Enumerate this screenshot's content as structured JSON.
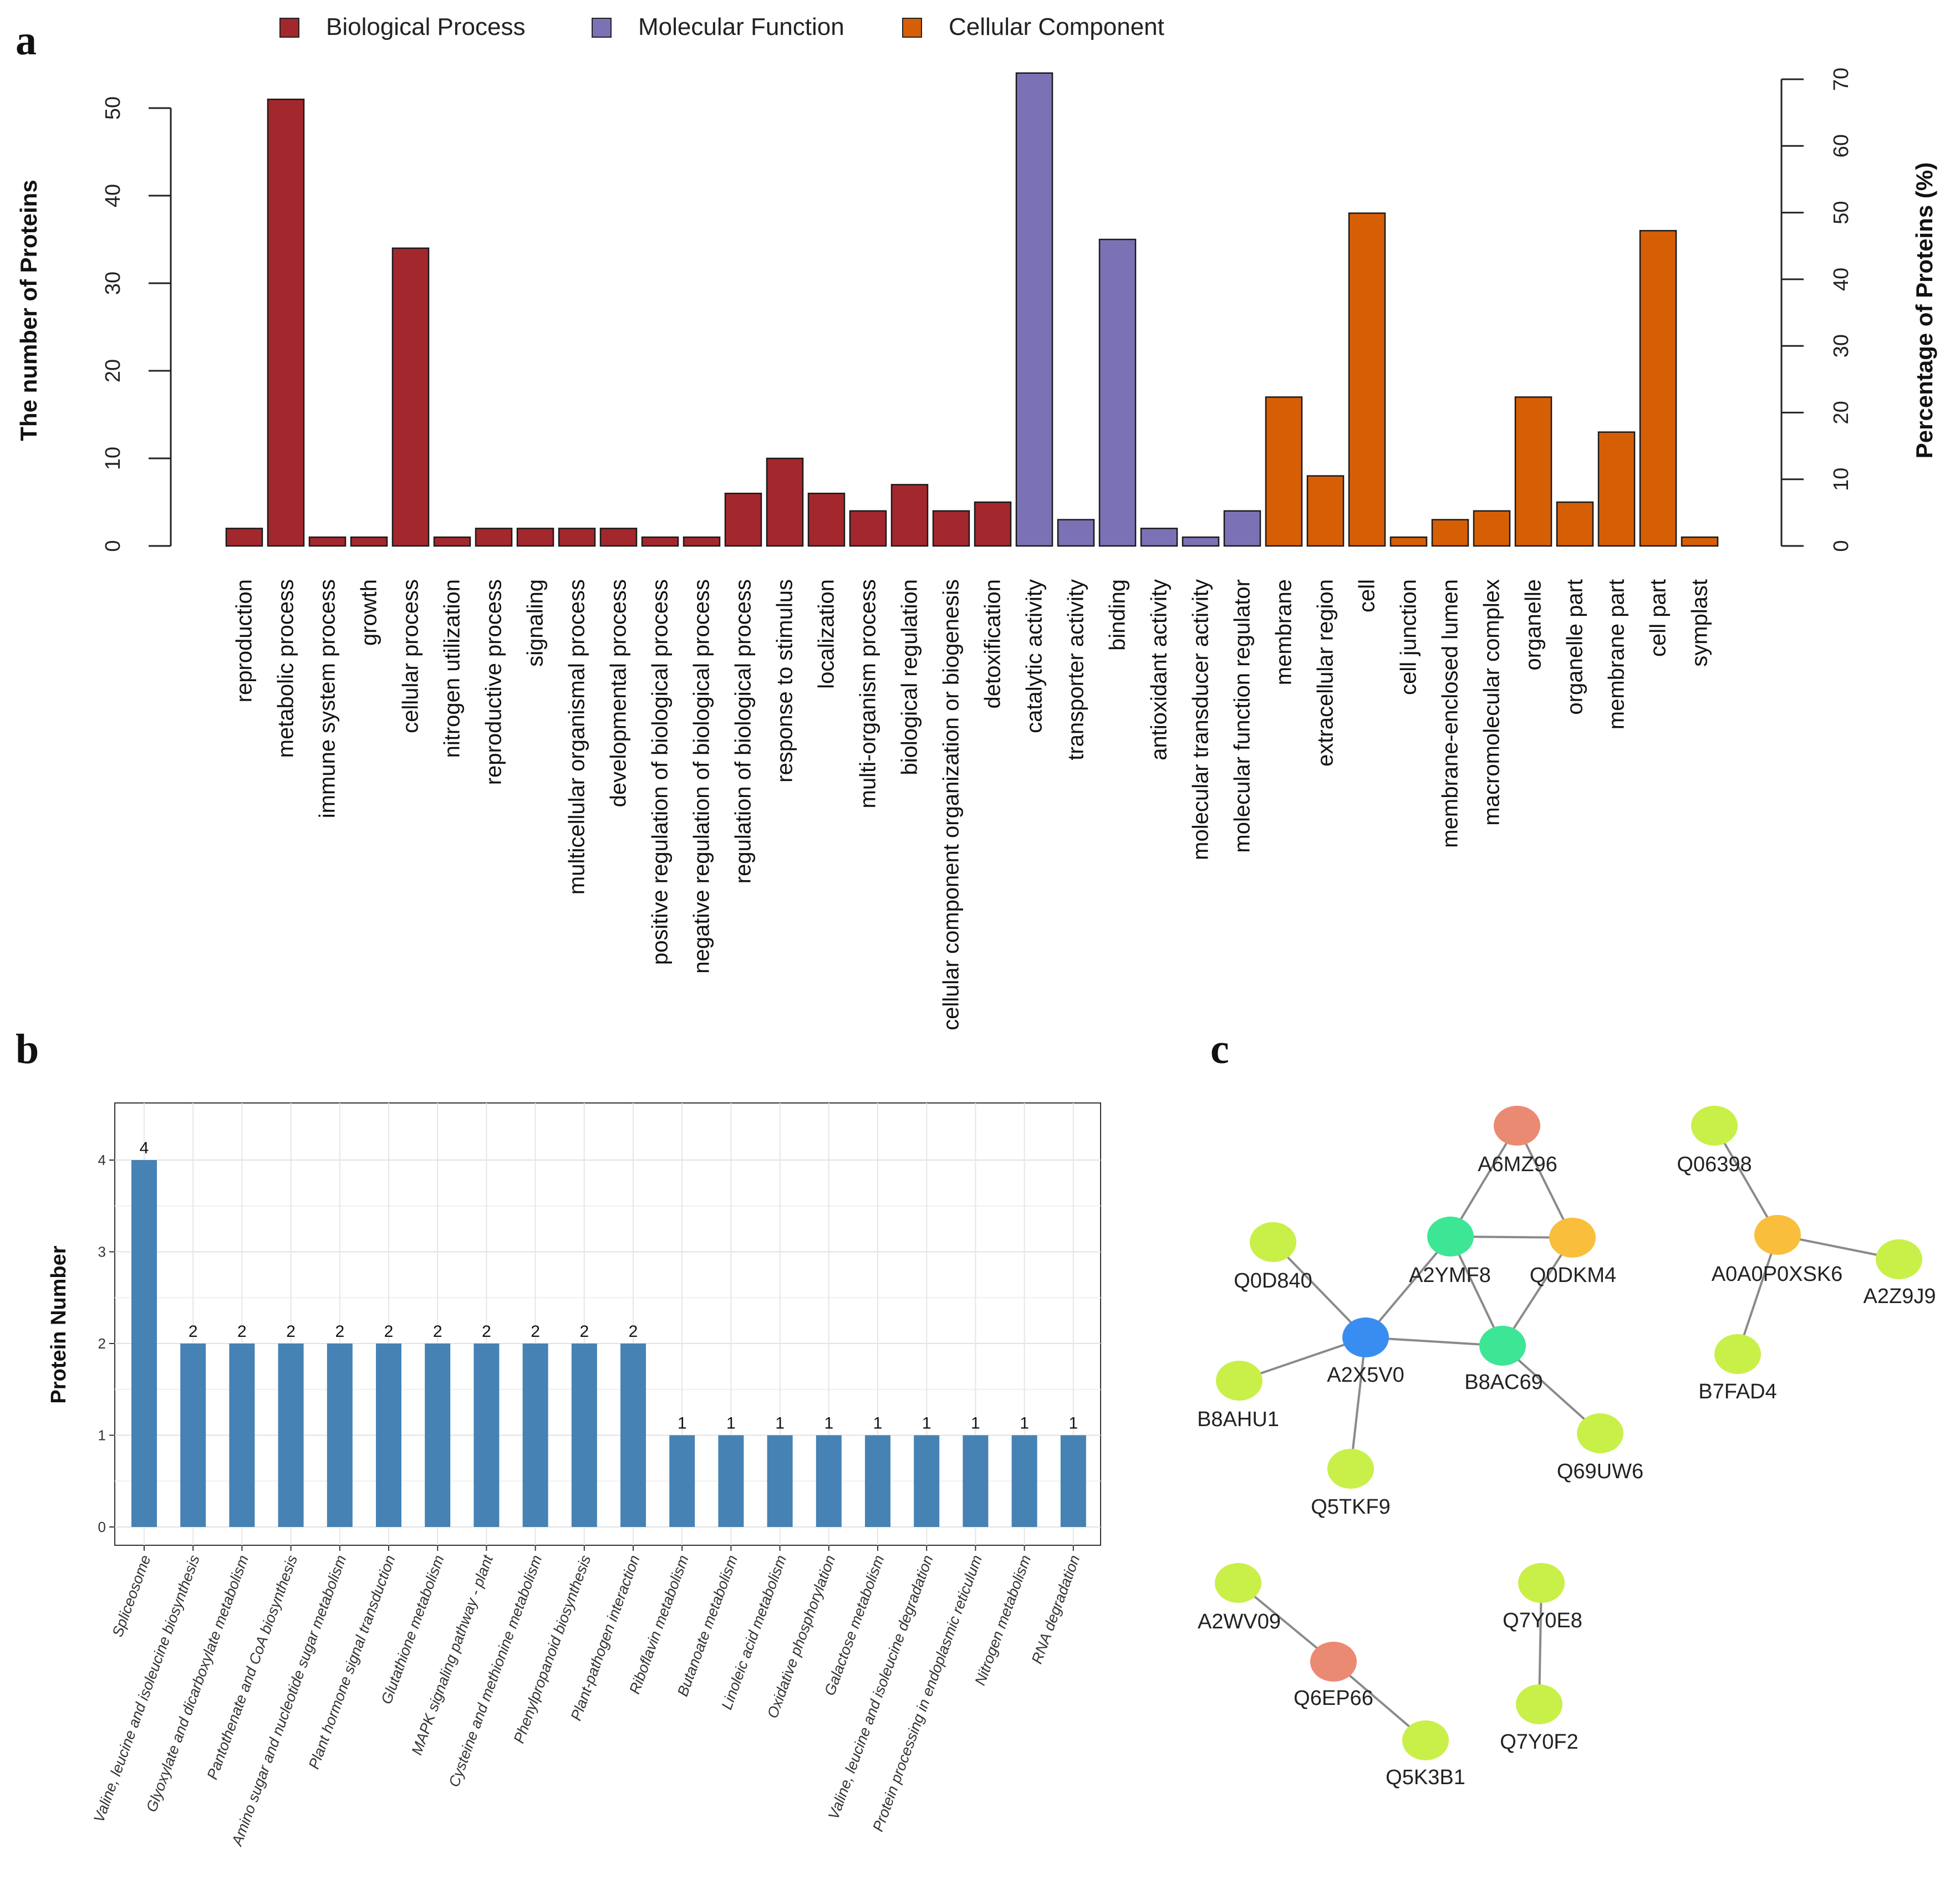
{
  "panel_labels": {
    "a": "a",
    "b": "b",
    "c": "c"
  },
  "colors": {
    "Biological Process": "#A3282E",
    "Molecular Function": "#7B72B6",
    "Cellular Component": "#D65F06",
    "bar_b": "#4682B4",
    "edge": "#8a8a8a",
    "node_lime": "#C8F048",
    "node_salmon": "#EB8A72",
    "node_orange": "#F9BE3C",
    "node_green": "#3DE695",
    "node_blue": "#3A8DF0"
  },
  "chart_data": [
    {
      "id": "a",
      "type": "bar",
      "ylabel": "The number of Proteins",
      "y2label": "Percentage of Proteins (%)",
      "ylim": [
        0,
        50
      ],
      "yticks": [
        0,
        10,
        20,
        30,
        40,
        50
      ],
      "y2lim": [
        0,
        70
      ],
      "y2ticks": [
        0,
        10,
        20,
        30,
        40,
        50,
        60,
        70
      ],
      "legend": [
        {
          "name": "Biological Process"
        },
        {
          "name": "Molecular Function"
        },
        {
          "name": "Cellular Component"
        }
      ],
      "categories": [
        {
          "name": "reproduction",
          "value": 2,
          "group": "Biological Process"
        },
        {
          "name": "metabolic process",
          "value": 51,
          "group": "Biological Process"
        },
        {
          "name": "immune system process",
          "value": 1,
          "group": "Biological Process"
        },
        {
          "name": "growth",
          "value": 1,
          "group": "Biological Process"
        },
        {
          "name": "cellular process",
          "value": 34,
          "group": "Biological Process"
        },
        {
          "name": "nitrogen utilization",
          "value": 1,
          "group": "Biological Process"
        },
        {
          "name": "reproductive process",
          "value": 2,
          "group": "Biological Process"
        },
        {
          "name": "signaling",
          "value": 2,
          "group": "Biological Process"
        },
        {
          "name": "multicellular organismal process",
          "value": 2,
          "group": "Biological Process"
        },
        {
          "name": "developmental process",
          "value": 2,
          "group": "Biological Process"
        },
        {
          "name": "positive regulation of biological process",
          "value": 1,
          "group": "Biological Process"
        },
        {
          "name": "negative regulation of biological process",
          "value": 1,
          "group": "Biological Process"
        },
        {
          "name": "regulation of biological process",
          "value": 6,
          "group": "Biological Process"
        },
        {
          "name": "response to stimulus",
          "value": 10,
          "group": "Biological Process"
        },
        {
          "name": "localization",
          "value": 6,
          "group": "Biological Process"
        },
        {
          "name": "multi-organism process",
          "value": 4,
          "group": "Biological Process"
        },
        {
          "name": "biological regulation",
          "value": 7,
          "group": "Biological Process"
        },
        {
          "name": "cellular component organization or biogenesis",
          "value": 4,
          "group": "Biological Process"
        },
        {
          "name": "detoxification",
          "value": 5,
          "group": "Biological Process"
        },
        {
          "name": "catalytic activity",
          "value": 54,
          "group": "Molecular Function"
        },
        {
          "name": "transporter activity",
          "value": 3,
          "group": "Molecular Function"
        },
        {
          "name": "binding",
          "value": 35,
          "group": "Molecular Function"
        },
        {
          "name": "antioxidant activity",
          "value": 2,
          "group": "Molecular Function"
        },
        {
          "name": "molecular transducer activity",
          "value": 1,
          "group": "Molecular Function"
        },
        {
          "name": "molecular function regulator",
          "value": 4,
          "group": "Molecular Function"
        },
        {
          "name": "membrane",
          "value": 17,
          "group": "Cellular Component"
        },
        {
          "name": "extracellular region",
          "value": 8,
          "group": "Cellular Component"
        },
        {
          "name": "cell",
          "value": 38,
          "group": "Cellular Component"
        },
        {
          "name": "cell junction",
          "value": 1,
          "group": "Cellular Component"
        },
        {
          "name": "membrane-enclosed lumen",
          "value": 3,
          "group": "Cellular Component"
        },
        {
          "name": "macromolecular complex",
          "value": 4,
          "group": "Cellular Component"
        },
        {
          "name": "organelle",
          "value": 17,
          "group": "Cellular Component"
        },
        {
          "name": "organelle part",
          "value": 5,
          "group": "Cellular Component"
        },
        {
          "name": "membrane part",
          "value": 13,
          "group": "Cellular Component"
        },
        {
          "name": "cell part",
          "value": 36,
          "group": "Cellular Component"
        },
        {
          "name": "symplast",
          "value": 1,
          "group": "Cellular Component"
        }
      ]
    },
    {
      "id": "b",
      "type": "bar",
      "ylabel": "Protein Number",
      "ylim": [
        0,
        4.5
      ],
      "yticks": [
        0,
        1,
        2,
        3,
        4
      ],
      "grid": true,
      "categories": [
        "Spliceosome",
        "Valine, leucine and isoleucine biosynthesis",
        "Glyoxylate and dicarboxylate metabolism",
        "Pantothenate and CoA biosynthesis",
        "Amino sugar and nucleotide sugar metabolism",
        "Plant hormone signal transduction",
        "Glutathione metabolism",
        "MAPK signaling pathway - plant",
        "Cysteine and methionine metabolism",
        "Phenylpropanoid biosynthesis",
        "Plant-pathogen interaction",
        "Riboflavin metabolism",
        "Butanoate metabolism",
        "Linoleic acid metabolism",
        "Oxidative phosphorylation",
        "Galactose metabolism",
        "Valine, leucine and isoleucine degradation",
        "Protein processing in endoplasmic reticulum",
        "Nitrogen metabolism",
        "RNA degradation"
      ],
      "values": [
        4,
        2,
        2,
        2,
        2,
        2,
        2,
        2,
        2,
        2,
        2,
        1,
        1,
        1,
        1,
        1,
        1,
        1,
        1,
        1
      ]
    }
  ],
  "network": {
    "nodes": [
      {
        "id": "A6MZ96",
        "color": "node_salmon"
      },
      {
        "id": "A2YMF8",
        "color": "node_green"
      },
      {
        "id": "Q0DKM4",
        "color": "node_orange"
      },
      {
        "id": "Q0D840",
        "color": "node_lime"
      },
      {
        "id": "A2X5V0",
        "color": "node_blue"
      },
      {
        "id": "B8AC69",
        "color": "node_green"
      },
      {
        "id": "B8AHU1",
        "color": "node_lime"
      },
      {
        "id": "Q5TKF9",
        "color": "node_lime"
      },
      {
        "id": "Q69UW6",
        "color": "node_lime"
      },
      {
        "id": "Q06398",
        "color": "node_lime"
      },
      {
        "id": "A0A0P0XSK6",
        "color": "node_orange"
      },
      {
        "id": "A2Z9J9",
        "color": "node_lime"
      },
      {
        "id": "B7FAD4",
        "color": "node_lime"
      },
      {
        "id": "A2WV09",
        "color": "node_lime"
      },
      {
        "id": "Q6EP66",
        "color": "node_salmon"
      },
      {
        "id": "Q5K3B1",
        "color": "node_lime"
      },
      {
        "id": "Q7Y0E8",
        "color": "node_lime"
      },
      {
        "id": "Q7Y0F2",
        "color": "node_lime"
      }
    ],
    "edges": [
      [
        "A6MZ96",
        "A2YMF8"
      ],
      [
        "A6MZ96",
        "Q0DKM4"
      ],
      [
        "A2YMF8",
        "Q0DKM4"
      ],
      [
        "A2YMF8",
        "A2X5V0"
      ],
      [
        "A2YMF8",
        "B8AC69"
      ],
      [
        "Q0DKM4",
        "B8AC69"
      ],
      [
        "A2X5V0",
        "B8AC69"
      ],
      [
        "A2X5V0",
        "Q0D840"
      ],
      [
        "A2X5V0",
        "B8AHU1"
      ],
      [
        "A2X5V0",
        "Q5TKF9"
      ],
      [
        "B8AC69",
        "Q69UW6"
      ],
      [
        "Q06398",
        "A0A0P0XSK6"
      ],
      [
        "A0A0P0XSK6",
        "A2Z9J9"
      ],
      [
        "A0A0P0XSK6",
        "B7FAD4"
      ],
      [
        "A2WV09",
        "Q6EP66"
      ],
      [
        "Q6EP66",
        "Q5K3B1"
      ],
      [
        "Q7Y0E8",
        "Q7Y0F2"
      ]
    ]
  }
}
